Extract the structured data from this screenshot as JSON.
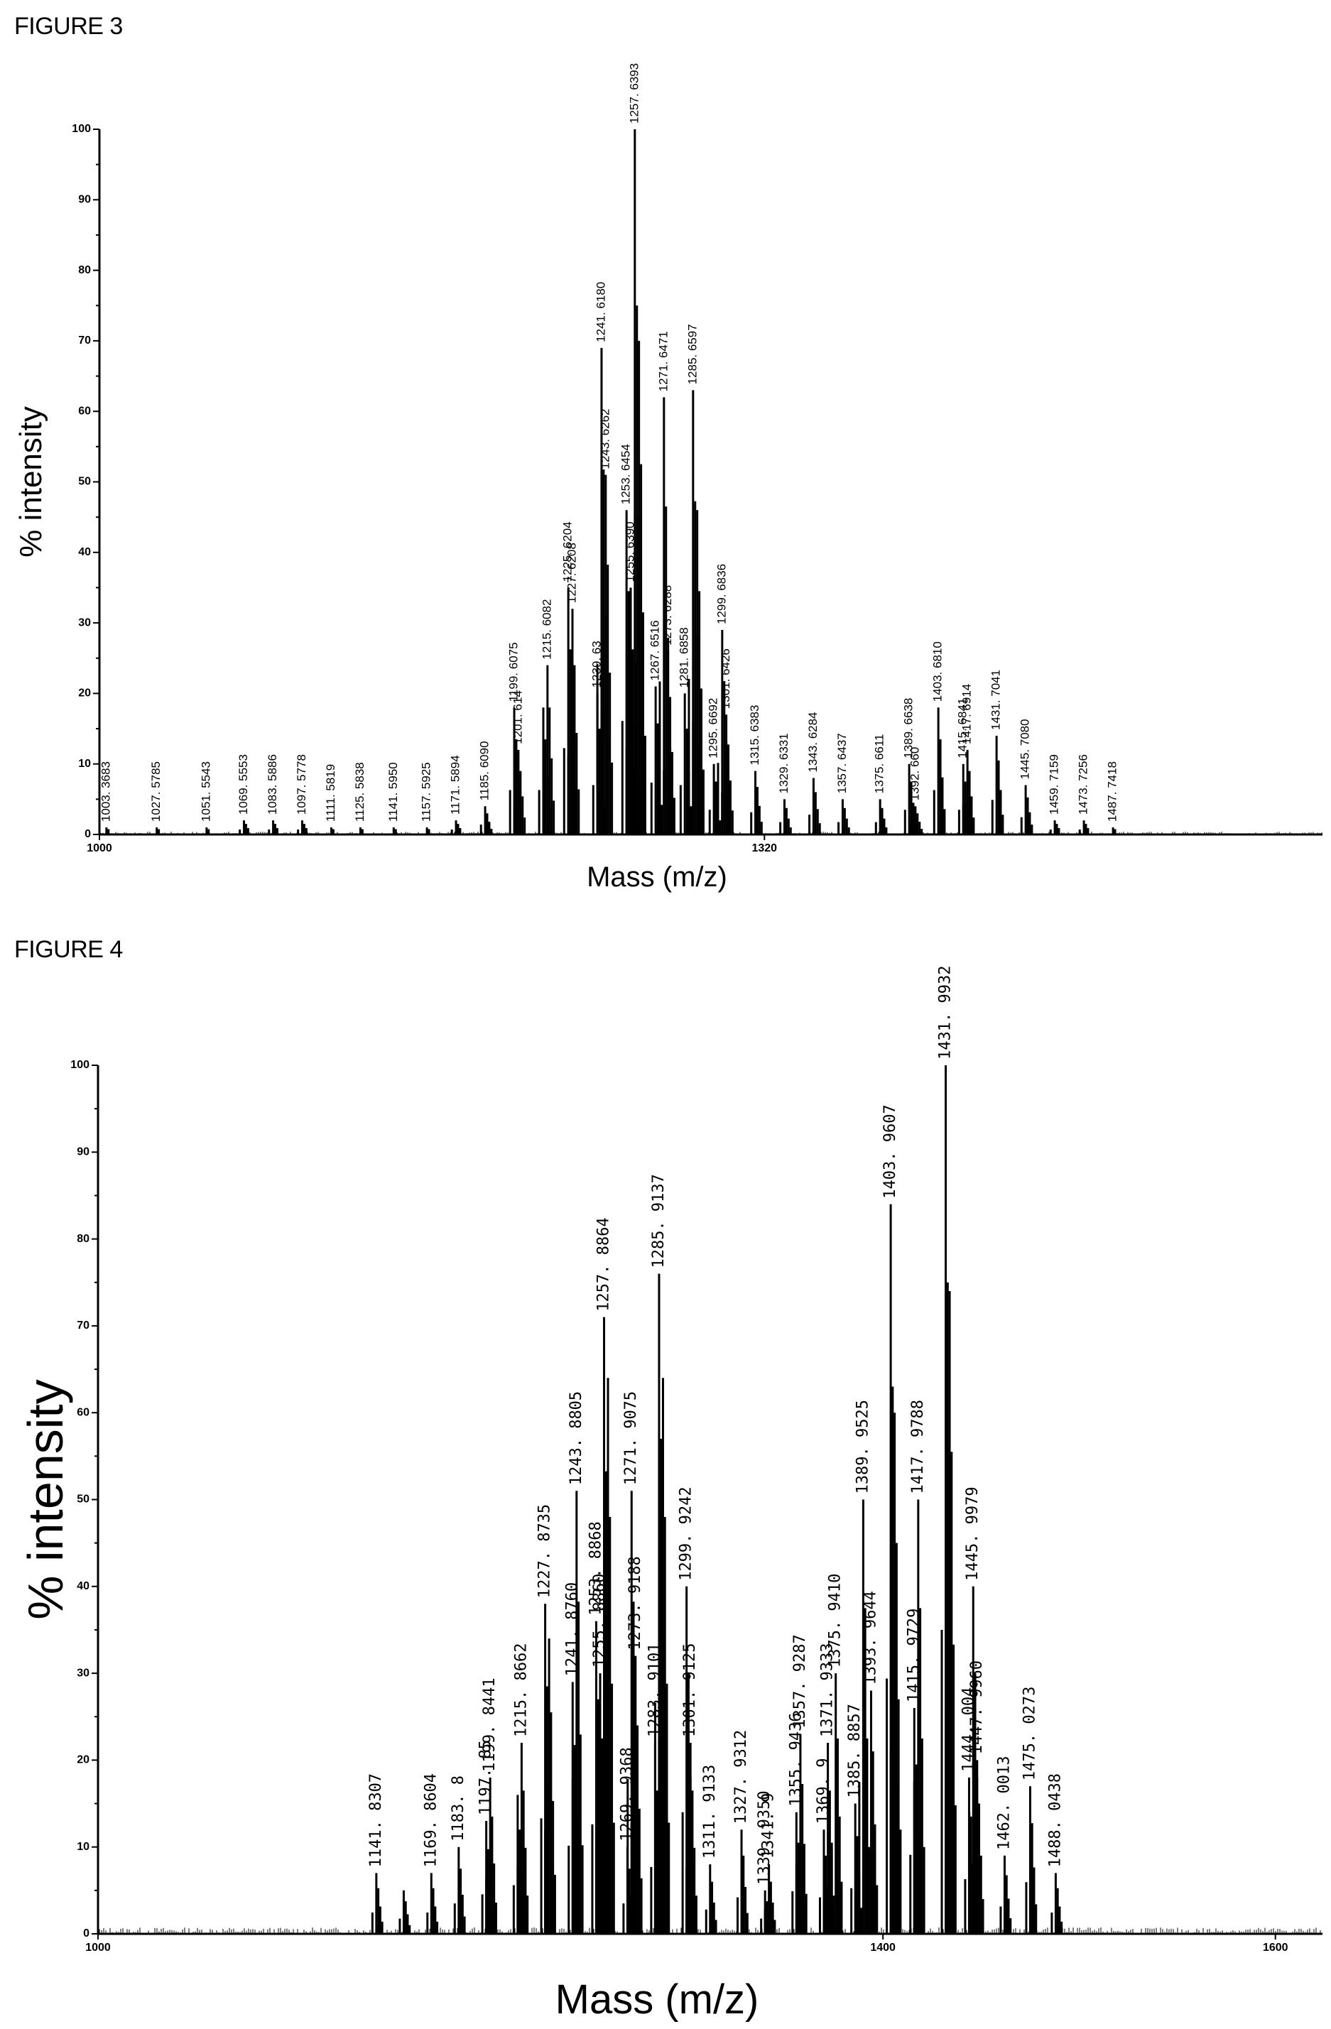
{
  "figures": {
    "fig3_title": "FIGURE 3",
    "fig4_title": "FIGURE 4"
  },
  "chart_data": [
    {
      "type": "bar",
      "title": "FIGURE 3",
      "xlabel": "Mass (m/z)",
      "ylabel": "% intensity",
      "xlim": [
        1000,
        1540
      ],
      "ylim": [
        0,
        100
      ],
      "yticks": [
        0,
        10,
        20,
        30,
        40,
        50,
        60,
        70,
        80,
        90,
        100
      ],
      "xticks": [
        1000,
        1320
      ],
      "peaks": [
        {
          "x": 1003.3683,
          "y": 1,
          "label": "1003. 3683"
        },
        {
          "x": 1027.5785,
          "y": 1,
          "label": "1027. 5785"
        },
        {
          "x": 1051.5543,
          "y": 1,
          "label": "1051. 5543"
        },
        {
          "x": 1069.5553,
          "y": 2,
          "label": "1069. 5553"
        },
        {
          "x": 1083.5886,
          "y": 2,
          "label": "1083. 5886"
        },
        {
          "x": 1097.5778,
          "y": 2,
          "label": "1097. 5778"
        },
        {
          "x": 1111.5819,
          "y": 1,
          "label": "1111. 5819"
        },
        {
          "x": 1125.5838,
          "y": 1,
          "label": "1125. 5838"
        },
        {
          "x": 1141.595,
          "y": 1,
          "label": "1141. 5950"
        },
        {
          "x": 1157.5925,
          "y": 1,
          "label": "1157. 5925"
        },
        {
          "x": 1171.5894,
          "y": 2,
          "label": "1171. 5894"
        },
        {
          "x": 1185.609,
          "y": 4,
          "label": "1185. 6090"
        },
        {
          "x": 1199.6075,
          "y": 18,
          "label": "1199. 6075"
        },
        {
          "x": 1201.614,
          "y": 12,
          "label": "1201. 614"
        },
        {
          "x": 1213.6,
          "y": 18,
          "label": ""
        },
        {
          "x": 1215.6082,
          "y": 24,
          "label": "1215. 6082"
        },
        {
          "x": 1225.6204,
          "y": 35,
          "label": "1225. 6204"
        },
        {
          "x": 1227.6208,
          "y": 32,
          "label": "1227. 6208"
        },
        {
          "x": 1239.63,
          "y": 20,
          "label": "1239. 63"
        },
        {
          "x": 1241.618,
          "y": 69,
          "label": "1241. 6180"
        },
        {
          "x": 1243.6262,
          "y": 51,
          "label": "1243. 6262"
        },
        {
          "x": 1253.6454,
          "y": 46,
          "label": "1253. 6454"
        },
        {
          "x": 1255.639,
          "y": 35,
          "label": "1255. 6390"
        },
        {
          "x": 1257.6393,
          "y": 100,
          "label": "1257. 6393"
        },
        {
          "x": 1259.63,
          "y": 70,
          "label": ""
        },
        {
          "x": 1267.6516,
          "y": 21,
          "label": "1267. 6516"
        },
        {
          "x": 1271.6471,
          "y": 62,
          "label": "1271. 6471"
        },
        {
          "x": 1273.6288,
          "y": 26,
          "label": "1273. 6288"
        },
        {
          "x": 1281.6858,
          "y": 20,
          "label": "1281. 6858"
        },
        {
          "x": 1285.6597,
          "y": 63,
          "label": "1285. 6597"
        },
        {
          "x": 1287.66,
          "y": 46,
          "label": ""
        },
        {
          "x": 1295.6692,
          "y": 10,
          "label": "1295. 6692"
        },
        {
          "x": 1299.6836,
          "y": 29,
          "label": "1299. 6836"
        },
        {
          "x": 1301.6426,
          "y": 17,
          "label": "1301. 6426"
        },
        {
          "x": 1315.6383,
          "y": 9,
          "label": "1315. 6383"
        },
        {
          "x": 1329.6331,
          "y": 5,
          "label": "1329. 6331"
        },
        {
          "x": 1343.6284,
          "y": 8,
          "label": "1343. 6284"
        },
        {
          "x": 1357.6437,
          "y": 5,
          "label": "1357. 6437"
        },
        {
          "x": 1375.6611,
          "y": 5,
          "label": "1375. 6611"
        },
        {
          "x": 1389.6638,
          "y": 10,
          "label": "1389. 6638"
        },
        {
          "x": 1392.66,
          "y": 4,
          "label": "1392. 660"
        },
        {
          "x": 1403.681,
          "y": 18,
          "label": "1403. 6810"
        },
        {
          "x": 1415.6841,
          "y": 10,
          "label": "1415. 6841"
        },
        {
          "x": 1417.6914,
          "y": 12,
          "label": "1417. 6914"
        },
        {
          "x": 1431.7041,
          "y": 14,
          "label": "1431. 7041"
        },
        {
          "x": 1445.708,
          "y": 7,
          "label": "1445. 7080"
        },
        {
          "x": 1459.7159,
          "y": 2,
          "label": "1459. 7159"
        },
        {
          "x": 1473.7256,
          "y": 2,
          "label": "1473. 7256"
        },
        {
          "x": 1487.7418,
          "y": 1,
          "label": "1487. 7418"
        }
      ]
    },
    {
      "type": "bar",
      "title": "FIGURE 4",
      "xlabel": "Mass (m/z)",
      "ylabel": "% intensity",
      "xlim": [
        1000,
        1620
      ],
      "ylim": [
        0,
        100
      ],
      "yticks": [
        0,
        10,
        20,
        30,
        40,
        50,
        60,
        70,
        80,
        90,
        100
      ],
      "xticks": [
        1000,
        1400,
        1600
      ],
      "peaks": [
        {
          "x": 1141.8307,
          "y": 7,
          "label": "1141. 8307"
        },
        {
          "x": 1155.8,
          "y": 5,
          "label": ""
        },
        {
          "x": 1169.8604,
          "y": 7,
          "label": "1169. 8604"
        },
        {
          "x": 1183.8,
          "y": 10,
          "label": "1183. 8"
        },
        {
          "x": 1197.85,
          "y": 13,
          "label": "1197. 85"
        },
        {
          "x": 1199.8441,
          "y": 18,
          "label": "1199. 8441"
        },
        {
          "x": 1213.86,
          "y": 16,
          "label": ""
        },
        {
          "x": 1215.8662,
          "y": 22,
          "label": "1215. 8662"
        },
        {
          "x": 1227.8735,
          "y": 38,
          "label": "1227. 8735"
        },
        {
          "x": 1229.87,
          "y": 34,
          "label": ""
        },
        {
          "x": 1241.876,
          "y": 29,
          "label": "1241. 8760"
        },
        {
          "x": 1243.8805,
          "y": 51,
          "label": "1243. 8805"
        },
        {
          "x": 1253.8868,
          "y": 36,
          "label": "1253. 8868"
        },
        {
          "x": 1255.886,
          "y": 30,
          "label": "1255. 8860"
        },
        {
          "x": 1257.8864,
          "y": 71,
          "label": "1257. 8864"
        },
        {
          "x": 1259.88,
          "y": 64,
          "label": ""
        },
        {
          "x": 1269.8,
          "y": 10,
          "label": "1269. 9368"
        },
        {
          "x": 1271.9075,
          "y": 51,
          "label": "1271. 9075"
        },
        {
          "x": 1273.9188,
          "y": 32,
          "label": "1273. 9188"
        },
        {
          "x": 1283.9101,
          "y": 22,
          "label": "1283. 9101"
        },
        {
          "x": 1285.9137,
          "y": 76,
          "label": "1285. 9137"
        },
        {
          "x": 1287.91,
          "y": 64,
          "label": ""
        },
        {
          "x": 1299.9242,
          "y": 40,
          "label": "1299. 9242"
        },
        {
          "x": 1301.9125,
          "y": 22,
          "label": "1301. 9125"
        },
        {
          "x": 1311.9133,
          "y": 8,
          "label": "1311. 9133"
        },
        {
          "x": 1327.9312,
          "y": 12,
          "label": "1327. 9312"
        },
        {
          "x": 1339.93,
          "y": 5,
          "label": "1339. 9350"
        },
        {
          "x": 1341.9,
          "y": 8,
          "label": "1341. 9"
        },
        {
          "x": 1355.9,
          "y": 14,
          "label": "1355. 9436"
        },
        {
          "x": 1357.9287,
          "y": 23,
          "label": "1357. 9287"
        },
        {
          "x": 1369.9,
          "y": 12,
          "label": "1369. 9"
        },
        {
          "x": 1371.9333,
          "y": 22,
          "label": "1371. 9333"
        },
        {
          "x": 1375.941,
          "y": 30,
          "label": "1375. 9410"
        },
        {
          "x": 1385.9,
          "y": 15,
          "label": "1385. 8857"
        },
        {
          "x": 1389.9525,
          "y": 50,
          "label": "1389. 9525"
        },
        {
          "x": 1393.9644,
          "y": 28,
          "label": "1393. 9644"
        },
        {
          "x": 1403.9607,
          "y": 84,
          "label": "1403. 9607"
        },
        {
          "x": 1405.96,
          "y": 60,
          "label": ""
        },
        {
          "x": 1415.9729,
          "y": 26,
          "label": "1415. 9729"
        },
        {
          "x": 1417.9788,
          "y": 50,
          "label": "1417. 9788"
        },
        {
          "x": 1431.9932,
          "y": 100,
          "label": "1431. 9932"
        },
        {
          "x": 1433.99,
          "y": 74,
          "label": ""
        },
        {
          "x": 1443.9,
          "y": 18,
          "label": "1444. 004"
        },
        {
          "x": 1445.9979,
          "y": 40,
          "label": "1445. 9979"
        },
        {
          "x": 1447.996,
          "y": 20,
          "label": "1447. 9960"
        },
        {
          "x": 1462.0013,
          "y": 9,
          "label": "1462. 0013"
        },
        {
          "x": 1475.0273,
          "y": 17,
          "label": "1475. 0273"
        },
        {
          "x": 1488.0438,
          "y": 7,
          "label": "1488. 0438"
        }
      ]
    }
  ]
}
